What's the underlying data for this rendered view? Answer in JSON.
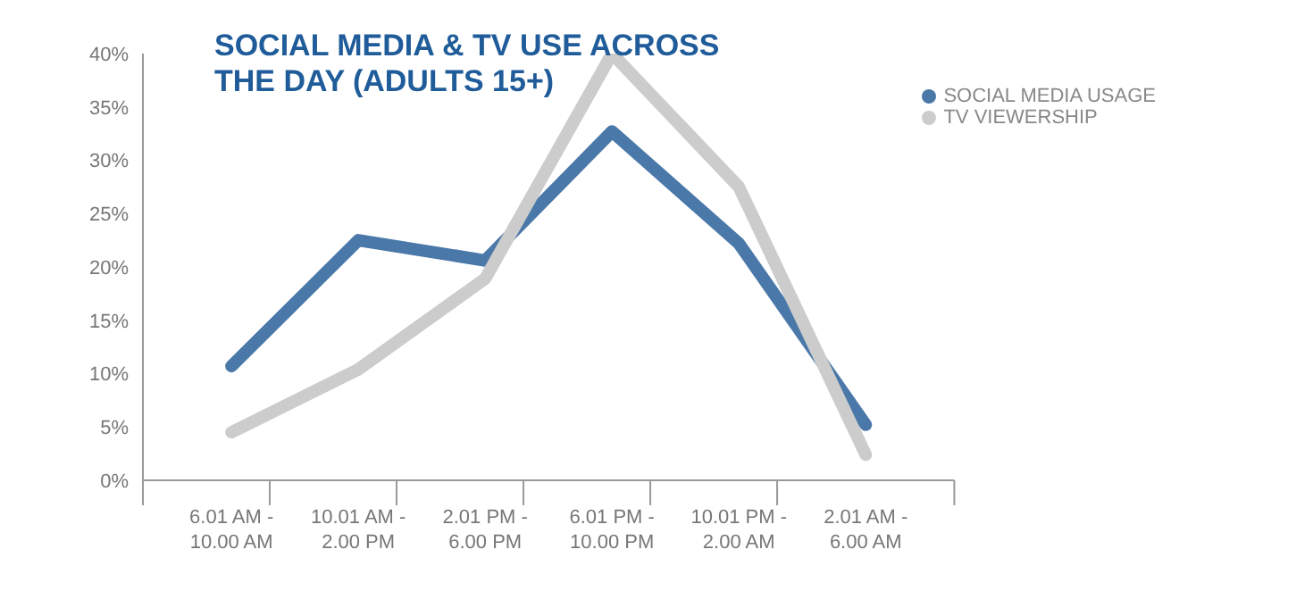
{
  "chart_data": {
    "type": "line",
    "title": "SOCIAL MEDIA & TV USE ACROSS THE DAY (ADULTS 15+)",
    "categories": [
      "6.01 AM - 10.00 AM",
      "10.01 AM - 2.00 PM",
      "2.01 PM - 6.00 PM",
      "6.01 PM - 10.00 PM",
      "10.01 PM - 2.00 AM",
      "2.01 AM - 6.00 AM"
    ],
    "series": [
      {
        "name": "SOCIAL MEDIA USAGE",
        "color": "#4a78a8",
        "values": [
          10.7,
          22.5,
          20.6,
          32.7,
          22.2,
          5.2
        ]
      },
      {
        "name": "TV VIEWERSHIP",
        "color": "#cccccc",
        "values": [
          4.5,
          10.4,
          18.9,
          40,
          27.5,
          2.4
        ]
      }
    ],
    "ylim": [
      0,
      40
    ],
    "yticks": [
      {
        "value": 0,
        "label": "0%"
      },
      {
        "value": 5,
        "label": "5%"
      },
      {
        "value": 10,
        "label": "10%"
      },
      {
        "value": 15,
        "label": "15%"
      },
      {
        "value": 20,
        "label": "20%"
      },
      {
        "value": 25,
        "label": "25%"
      },
      {
        "value": 30,
        "label": "30%"
      },
      {
        "value": 35,
        "label": "35%"
      },
      {
        "value": 40,
        "label": "40%"
      }
    ],
    "grid": false,
    "legend": "top right",
    "marker": "none",
    "line_style": "solid"
  }
}
